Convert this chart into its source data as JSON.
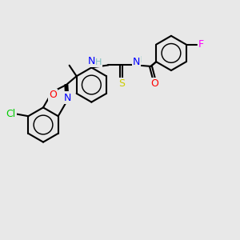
{
  "bg_color": "#e8e8e8",
  "atom_colors": {
    "C": "#000000",
    "N": "#0000ff",
    "O": "#ff0000",
    "S": "#cccc00",
    "F": "#ff00ff",
    "Cl": "#00cc00",
    "H": "#7fbfbf"
  },
  "bond_color": "#000000",
  "bond_width": 1.5,
  "font_size": 9
}
